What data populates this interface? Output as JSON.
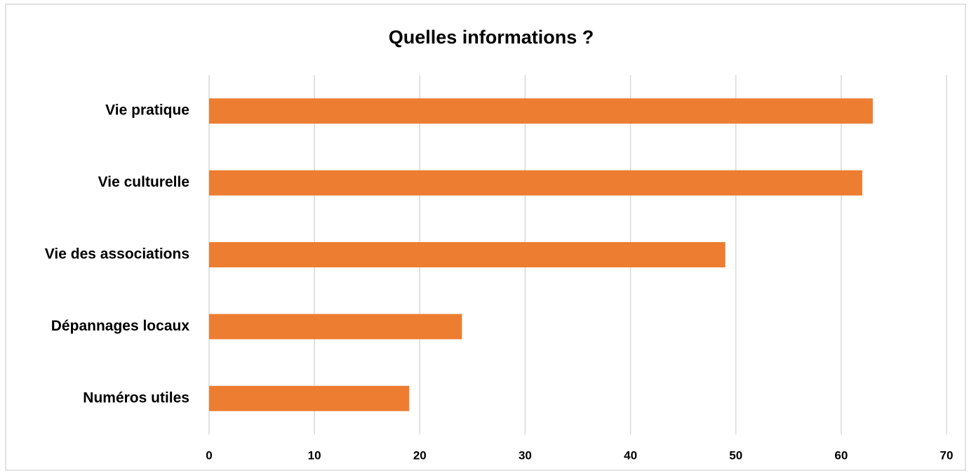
{
  "chart_data": {
    "type": "bar",
    "orientation": "horizontal",
    "title": "Quelles informations ?",
    "categories": [
      "Vie pratique",
      "Vie culturelle",
      "Vie des associations",
      "Dépannages locaux",
      "Numéros utiles"
    ],
    "values": [
      63,
      62,
      49,
      24,
      19
    ],
    "color": "#ed7d31",
    "xlim": [
      0,
      70
    ],
    "xticks": [
      0,
      10,
      20,
      30,
      40,
      50,
      60,
      70
    ],
    "grid": true
  }
}
